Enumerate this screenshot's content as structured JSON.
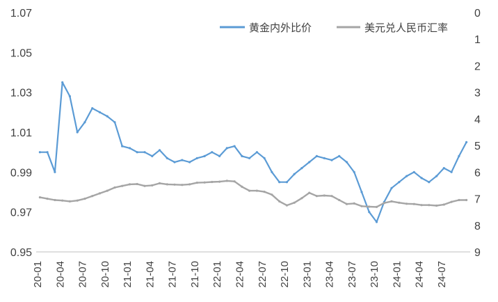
{
  "chart_data": {
    "type": "line",
    "legend_position": "top-right",
    "grid": false,
    "colors": {
      "gold": "#5b9bd5",
      "usd": "#a5a5a5",
      "axis": "#bfbfbf",
      "text": "#404040"
    },
    "x_tick_labels": [
      "20-01",
      "20-04",
      "20-07",
      "20-10",
      "21-01",
      "21-04",
      "21-07",
      "21-10",
      "22-01",
      "22-04",
      "22-07",
      "22-10",
      "23-01",
      "23-04",
      "23-07",
      "23-10",
      "24-01",
      "24-04",
      "24-07"
    ],
    "x_range": [
      "2020-01",
      "2024-10"
    ],
    "y_left": {
      "lim": [
        0.95,
        1.07
      ],
      "tick_labels": [
        "0.95",
        "0.97",
        "0.99",
        "1.01",
        "1.03",
        "1.05",
        "1.07"
      ]
    },
    "y_right": {
      "lim": [
        0,
        9
      ],
      "inverted": true,
      "tick_labels": [
        "0",
        "1",
        "2",
        "3",
        "4",
        "5",
        "6",
        "7",
        "8",
        "9"
      ]
    },
    "series": [
      {
        "name": "黄金内外比价",
        "axis": "left",
        "color": "#5b9bd5",
        "values": [
          {
            "x": "2020-01",
            "y": 1.0
          },
          {
            "x": "2020-02",
            "y": 1.0
          },
          {
            "x": "2020-03",
            "y": 0.99
          },
          {
            "x": "2020-04",
            "y": 1.035
          },
          {
            "x": "2020-05",
            "y": 1.028
          },
          {
            "x": "2020-06",
            "y": 1.01
          },
          {
            "x": "2020-07",
            "y": 1.015
          },
          {
            "x": "2020-08",
            "y": 1.022
          },
          {
            "x": "2020-09",
            "y": 1.02
          },
          {
            "x": "2020-10",
            "y": 1.018
          },
          {
            "x": "2020-11",
            "y": 1.015
          },
          {
            "x": "2020-12",
            "y": 1.003
          },
          {
            "x": "2021-01",
            "y": 1.002
          },
          {
            "x": "2021-02",
            "y": 1.0
          },
          {
            "x": "2021-03",
            "y": 1.0
          },
          {
            "x": "2021-04",
            "y": 0.998
          },
          {
            "x": "2021-05",
            "y": 1.001
          },
          {
            "x": "2021-06",
            "y": 0.997
          },
          {
            "x": "2021-07",
            "y": 0.995
          },
          {
            "x": "2021-08",
            "y": 0.996
          },
          {
            "x": "2021-09",
            "y": 0.995
          },
          {
            "x": "2021-10",
            "y": 0.997
          },
          {
            "x": "2021-11",
            "y": 0.998
          },
          {
            "x": "2021-12",
            "y": 1.0
          },
          {
            "x": "2022-01",
            "y": 0.998
          },
          {
            "x": "2022-02",
            "y": 1.002
          },
          {
            "x": "2022-03",
            "y": 1.003
          },
          {
            "x": "2022-04",
            "y": 0.998
          },
          {
            "x": "2022-05",
            "y": 0.997
          },
          {
            "x": "2022-06",
            "y": 1.0
          },
          {
            "x": "2022-07",
            "y": 0.997
          },
          {
            "x": "2022-08",
            "y": 0.99
          },
          {
            "x": "2022-09",
            "y": 0.985
          },
          {
            "x": "2022-10",
            "y": 0.985
          },
          {
            "x": "2022-11",
            "y": 0.989
          },
          {
            "x": "2022-12",
            "y": 0.992
          },
          {
            "x": "2023-01",
            "y": 0.995
          },
          {
            "x": "2023-02",
            "y": 0.998
          },
          {
            "x": "2023-03",
            "y": 0.997
          },
          {
            "x": "2023-04",
            "y": 0.996
          },
          {
            "x": "2023-05",
            "y": 0.998
          },
          {
            "x": "2023-06",
            "y": 0.995
          },
          {
            "x": "2023-07",
            "y": 0.99
          },
          {
            "x": "2023-08",
            "y": 0.98
          },
          {
            "x": "2023-09",
            "y": 0.97
          },
          {
            "x": "2023-10",
            "y": 0.965
          },
          {
            "x": "2023-11",
            "y": 0.975
          },
          {
            "x": "2023-12",
            "y": 0.982
          },
          {
            "x": "2024-01",
            "y": 0.985
          },
          {
            "x": "2024-02",
            "y": 0.988
          },
          {
            "x": "2024-03",
            "y": 0.99
          },
          {
            "x": "2024-04",
            "y": 0.987
          },
          {
            "x": "2024-05",
            "y": 0.985
          },
          {
            "x": "2024-06",
            "y": 0.988
          },
          {
            "x": "2024-07",
            "y": 0.992
          },
          {
            "x": "2024-08",
            "y": 0.99
          },
          {
            "x": "2024-09",
            "y": 0.998
          },
          {
            "x": "2024-10",
            "y": 1.005
          }
        ]
      },
      {
        "name": "美元兑人民币汇率",
        "axis": "right",
        "color": "#a5a5a5",
        "values": [
          {
            "x": "2020-01",
            "y": 6.95
          },
          {
            "x": "2020-02",
            "y": 7.0
          },
          {
            "x": "2020-03",
            "y": 7.05
          },
          {
            "x": "2020-04",
            "y": 7.07
          },
          {
            "x": "2020-05",
            "y": 7.1
          },
          {
            "x": "2020-06",
            "y": 7.07
          },
          {
            "x": "2020-07",
            "y": 7.0
          },
          {
            "x": "2020-08",
            "y": 6.9
          },
          {
            "x": "2020-09",
            "y": 6.8
          },
          {
            "x": "2020-10",
            "y": 6.7
          },
          {
            "x": "2020-11",
            "y": 6.58
          },
          {
            "x": "2020-12",
            "y": 6.52
          },
          {
            "x": "2021-01",
            "y": 6.46
          },
          {
            "x": "2021-02",
            "y": 6.45
          },
          {
            "x": "2021-03",
            "y": 6.52
          },
          {
            "x": "2021-04",
            "y": 6.5
          },
          {
            "x": "2021-05",
            "y": 6.42
          },
          {
            "x": "2021-06",
            "y": 6.46
          },
          {
            "x": "2021-07",
            "y": 6.47
          },
          {
            "x": "2021-08",
            "y": 6.48
          },
          {
            "x": "2021-09",
            "y": 6.46
          },
          {
            "x": "2021-10",
            "y": 6.4
          },
          {
            "x": "2021-11",
            "y": 6.39
          },
          {
            "x": "2021-12",
            "y": 6.37
          },
          {
            "x": "2022-01",
            "y": 6.36
          },
          {
            "x": "2022-02",
            "y": 6.33
          },
          {
            "x": "2022-03",
            "y": 6.35
          },
          {
            "x": "2022-04",
            "y": 6.55
          },
          {
            "x": "2022-05",
            "y": 6.7
          },
          {
            "x": "2022-06",
            "y": 6.7
          },
          {
            "x": "2022-07",
            "y": 6.74
          },
          {
            "x": "2022-08",
            "y": 6.85
          },
          {
            "x": "2022-09",
            "y": 7.1
          },
          {
            "x": "2022-10",
            "y": 7.25
          },
          {
            "x": "2022-11",
            "y": 7.15
          },
          {
            "x": "2022-12",
            "y": 6.98
          },
          {
            "x": "2023-01",
            "y": 6.78
          },
          {
            "x": "2023-02",
            "y": 6.9
          },
          {
            "x": "2023-03",
            "y": 6.88
          },
          {
            "x": "2023-04",
            "y": 6.9
          },
          {
            "x": "2023-05",
            "y": 7.05
          },
          {
            "x": "2023-06",
            "y": 7.2
          },
          {
            "x": "2023-07",
            "y": 7.18
          },
          {
            "x": "2023-08",
            "y": 7.28
          },
          {
            "x": "2023-09",
            "y": 7.3
          },
          {
            "x": "2023-10",
            "y": 7.31
          },
          {
            "x": "2023-11",
            "y": 7.16
          },
          {
            "x": "2023-12",
            "y": 7.1
          },
          {
            "x": "2024-01",
            "y": 7.15
          },
          {
            "x": "2024-02",
            "y": 7.19
          },
          {
            "x": "2024-03",
            "y": 7.2
          },
          {
            "x": "2024-04",
            "y": 7.24
          },
          {
            "x": "2024-05",
            "y": 7.24
          },
          {
            "x": "2024-06",
            "y": 7.26
          },
          {
            "x": "2024-07",
            "y": 7.22
          },
          {
            "x": "2024-08",
            "y": 7.12
          },
          {
            "x": "2024-09",
            "y": 7.05
          },
          {
            "x": "2024-10",
            "y": 7.05
          }
        ]
      }
    ]
  }
}
